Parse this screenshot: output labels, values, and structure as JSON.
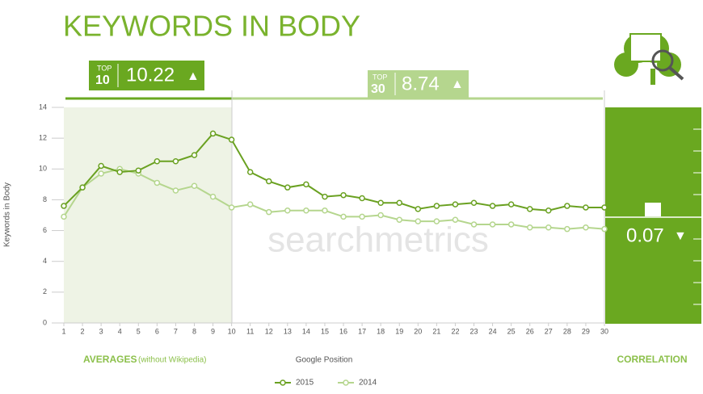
{
  "chart_data": {
    "type": "line",
    "title": "KEYWORDS IN BODY",
    "y_label": "Keywords in Body",
    "x_label": "Google Position",
    "averages_label": "AVERAGES",
    "averages_note": "(without Wikipedia)",
    "correlation_label": "CORRELATION",
    "watermark": "searchmetrics",
    "top10": {
      "label": "TOP",
      "rank": "10",
      "value": 10.22,
      "trend": "▲"
    },
    "top30": {
      "label": "TOP",
      "rank": "30",
      "value": 8.74,
      "trend": "▲"
    },
    "correlation": {
      "value": 0.07,
      "trend": "▼"
    },
    "x": [
      1,
      2,
      3,
      4,
      5,
      6,
      7,
      8,
      9,
      10,
      11,
      12,
      13,
      14,
      15,
      16,
      17,
      18,
      19,
      20,
      21,
      22,
      23,
      24,
      25,
      26,
      27,
      28,
      29,
      30
    ],
    "xlim": [
      1,
      30
    ],
    "xticks": [
      1,
      2,
      3,
      4,
      5,
      6,
      7,
      8,
      9,
      10,
      11,
      12,
      13,
      14,
      15,
      16,
      17,
      18,
      19,
      20,
      21,
      22,
      23,
      24,
      25,
      26,
      27,
      28,
      29,
      30
    ],
    "ylim": [
      0,
      14
    ],
    "yticks": [
      0,
      2,
      4,
      6,
      8,
      10,
      12,
      14
    ],
    "grid": true,
    "series": [
      {
        "name": "2015",
        "color": "#6aa121",
        "values": [
          7.6,
          8.8,
          10.2,
          9.8,
          9.9,
          10.5,
          10.5,
          10.9,
          12.3,
          11.9,
          9.8,
          9.2,
          8.8,
          9.0,
          8.2,
          8.3,
          8.1,
          7.8,
          7.8,
          7.4,
          7.6,
          7.7,
          7.8,
          7.6,
          7.7,
          7.4,
          7.3,
          7.6,
          7.5,
          7.5
        ]
      },
      {
        "name": "2014",
        "color": "#b5d68e",
        "values": [
          6.9,
          8.8,
          9.7,
          10.0,
          9.7,
          9.1,
          8.6,
          8.9,
          8.2,
          7.5,
          7.7,
          7.2,
          7.3,
          7.3,
          7.3,
          6.9,
          6.9,
          7.0,
          6.7,
          6.6,
          6.6,
          6.7,
          6.4,
          6.4,
          6.4,
          6.2,
          6.2,
          6.1,
          6.2,
          6.1
        ]
      }
    ]
  }
}
